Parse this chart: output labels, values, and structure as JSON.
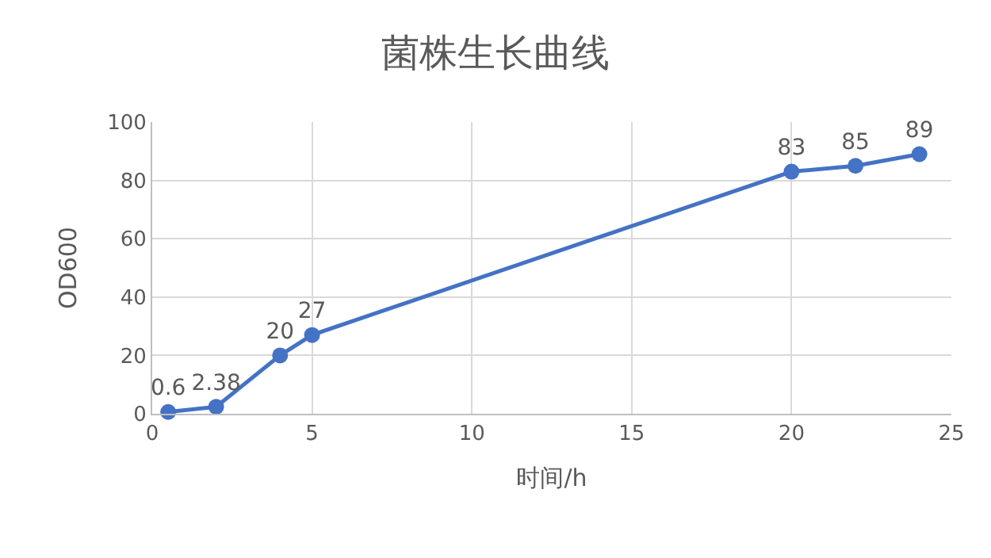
{
  "chart_data": {
    "type": "line",
    "title": "菌株生长曲线",
    "xlabel": "时间/h",
    "ylabel": "OD600",
    "x": [
      0.5,
      2,
      4,
      5,
      20,
      22,
      24
    ],
    "series": [
      {
        "color": "#4472c4",
        "values": [
          0.6,
          2.38,
          20,
          27,
          83,
          85,
          89
        ]
      }
    ],
    "xlim": [
      0,
      25
    ],
    "xticks": [
      0,
      5,
      10,
      15,
      20,
      25
    ],
    "ylim": [
      0,
      100
    ],
    "yticks": [
      0,
      20,
      40,
      60,
      80,
      100
    ],
    "grid": true,
    "marker": "circle",
    "line_style": "solid",
    "data_labels": true
  }
}
